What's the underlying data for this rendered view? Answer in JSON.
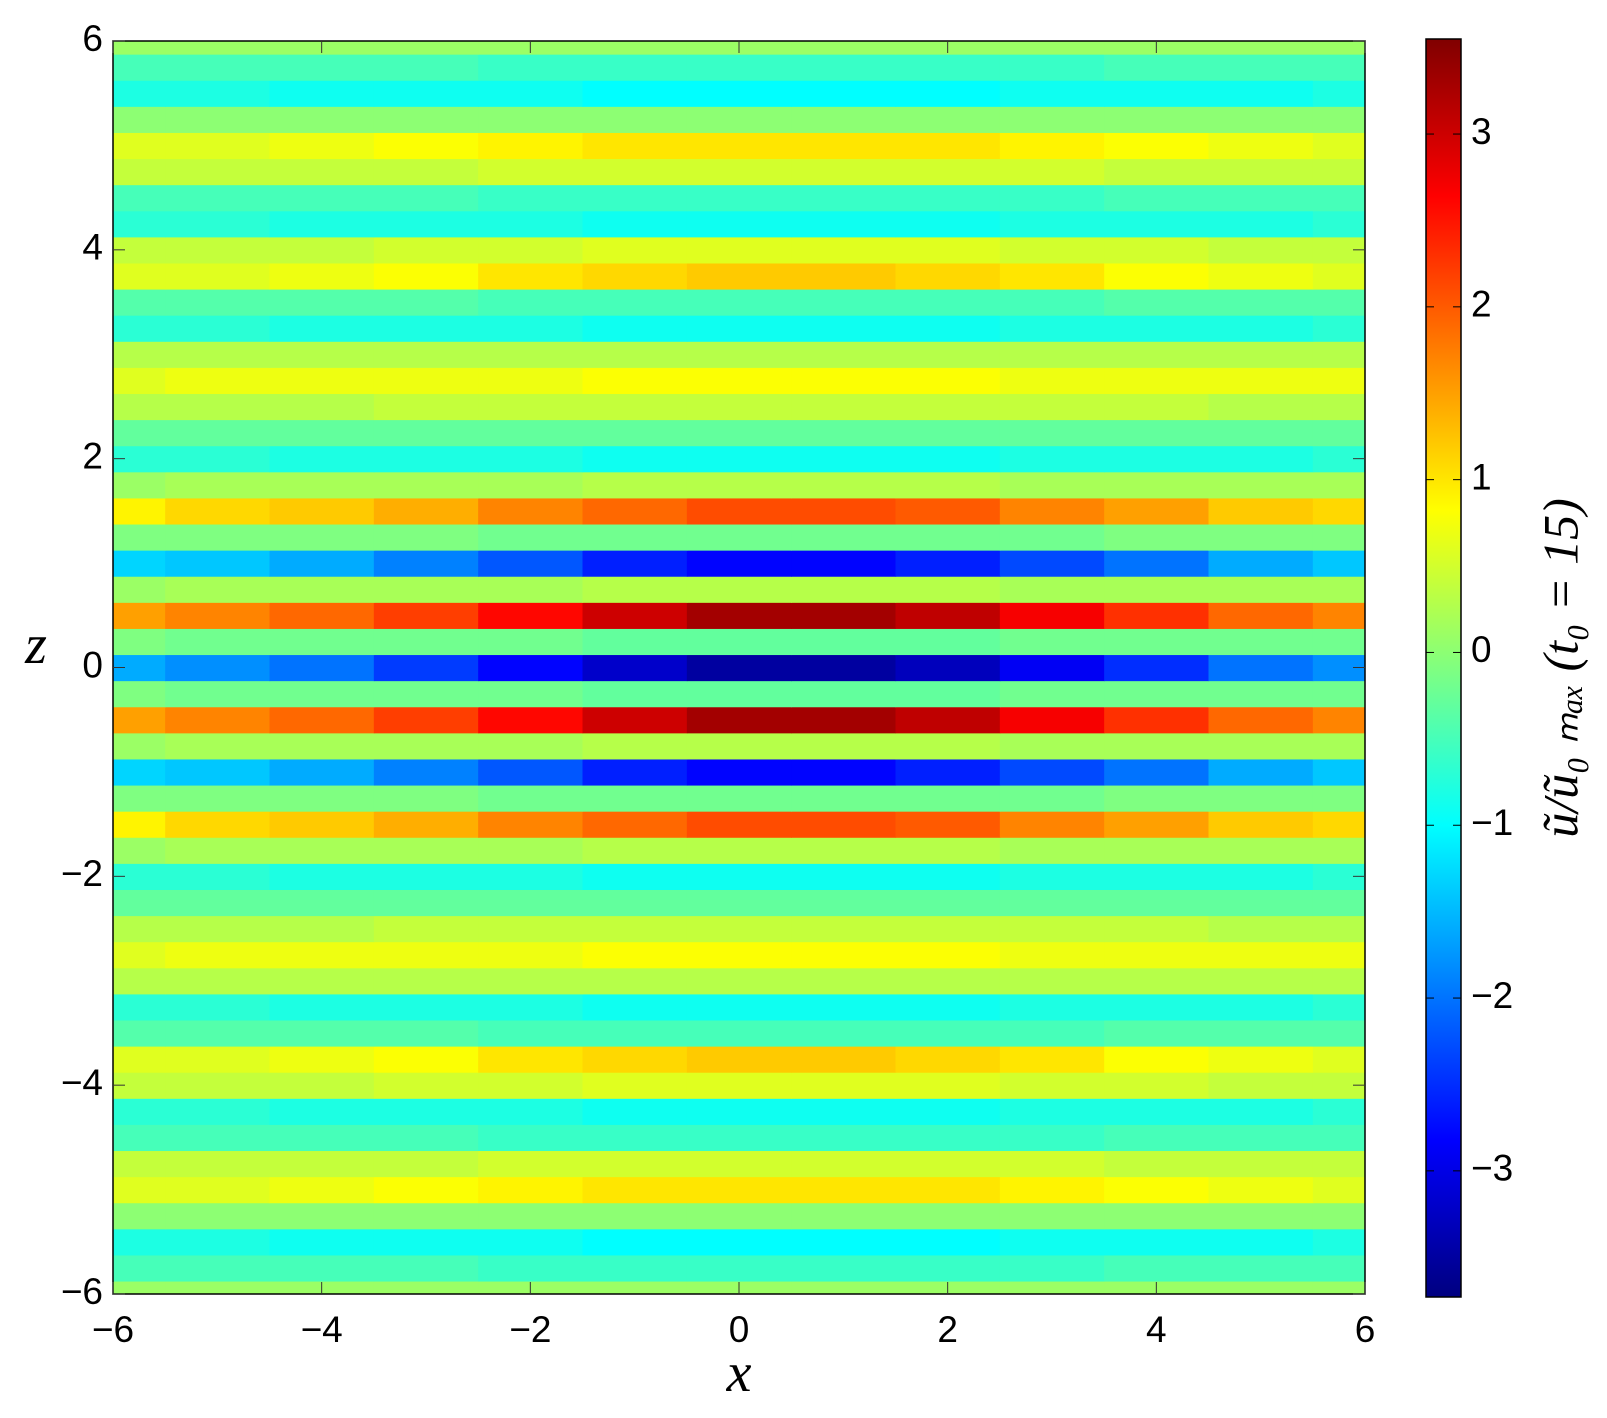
{
  "chart_data": {
    "type": "heatmap",
    "x_label": "x",
    "y_label": "z",
    "colorbar_label": "ũ/ũ₀ ₘₐₓ  (t₀ = 15)",
    "x": [
      -6,
      -5,
      -4,
      -3,
      -2,
      -1,
      0,
      1,
      2,
      3,
      4,
      5,
      6
    ],
    "z": [
      -6,
      -5.75,
      -5.5,
      -5.25,
      -5,
      -4.75,
      -4.5,
      -4.25,
      -4,
      -3.75,
      -3.5,
      -3.25,
      -3,
      -2.75,
      -2.5,
      -2.25,
      -2,
      -1.75,
      -1.5,
      -1.25,
      -1,
      -0.75,
      -0.5,
      -0.25,
      0,
      0.25,
      0.5,
      0.75,
      1,
      1.25,
      1.5,
      1.75,
      2,
      2.25,
      2.5,
      2.75,
      3,
      3.25,
      3.5,
      3.75,
      4,
      4.25,
      4.5,
      4.75,
      5,
      5.25,
      5.5,
      5.75,
      6
    ],
    "values": [
      [
        0.1,
        0.1,
        0.1,
        0.1,
        0.1,
        0.1,
        0.1,
        0.1,
        0.1,
        0.1,
        0.1,
        0.1,
        0.1
      ],
      [
        -0.5,
        -0.5,
        -0.5,
        -0.5,
        -0.6,
        -0.6,
        -0.6,
        -0.6,
        -0.6,
        -0.6,
        -0.5,
        -0.5,
        -0.5
      ],
      [
        -0.8,
        -0.8,
        -0.9,
        -0.9,
        -0.9,
        -1.0,
        -1.0,
        -1.0,
        -1.0,
        -0.9,
        -0.9,
        -0.9,
        -0.8
      ],
      [
        0,
        0,
        0,
        0,
        0,
        0,
        0,
        0,
        0,
        0,
        0,
        0,
        0
      ],
      [
        0.6,
        0.6,
        0.7,
        0.8,
        0.9,
        1.0,
        1.0,
        1.0,
        1.0,
        0.9,
        0.8,
        0.7,
        0.6
      ],
      [
        0.4,
        0.4,
        0.4,
        0.4,
        0.5,
        0.5,
        0.5,
        0.5,
        0.5,
        0.5,
        0.4,
        0.4,
        0.4
      ],
      [
        -0.5,
        -0.5,
        -0.5,
        -0.5,
        -0.6,
        -0.6,
        -0.6,
        -0.6,
        -0.6,
        -0.6,
        -0.5,
        -0.5,
        -0.5
      ],
      [
        -0.7,
        -0.7,
        -0.8,
        -0.8,
        -0.8,
        -0.9,
        -0.9,
        -0.9,
        -0.9,
        -0.8,
        -0.8,
        -0.8,
        -0.7
      ],
      [
        0.4,
        0.4,
        0.4,
        0.5,
        0.5,
        0.6,
        0.6,
        0.6,
        0.6,
        0.5,
        0.5,
        0.4,
        0.4
      ],
      [
        0.6,
        0.6,
        0.7,
        0.8,
        1.0,
        1.1,
        1.2,
        1.2,
        1.1,
        1.0,
        0.8,
        0.7,
        0.6
      ],
      [
        -0.4,
        -0.4,
        -0.4,
        -0.4,
        -0.5,
        -0.5,
        -0.5,
        -0.5,
        -0.5,
        -0.5,
        -0.4,
        -0.4,
        -0.4
      ],
      [
        -0.7,
        -0.7,
        -0.8,
        -0.8,
        -0.8,
        -0.9,
        -0.9,
        -0.9,
        -0.9,
        -0.8,
        -0.8,
        -0.8,
        -0.7
      ],
      [
        0.3,
        0.3,
        0.3,
        0.3,
        0.3,
        0.3,
        0.3,
        0.3,
        0.3,
        0.3,
        0.3,
        0.3,
        0.3
      ],
      [
        0.6,
        0.7,
        0.7,
        0.7,
        0.7,
        0.8,
        0.8,
        0.8,
        0.8,
        0.7,
        0.7,
        0.7,
        0.7
      ],
      [
        0.3,
        0.3,
        0.3,
        0.4,
        0.4,
        0.4,
        0.4,
        0.4,
        0.4,
        0.4,
        0.4,
        0.3,
        0.3
      ],
      [
        -0.3,
        -0.3,
        -0.3,
        -0.3,
        -0.3,
        -0.3,
        -0.3,
        -0.3,
        -0.3,
        -0.3,
        -0.3,
        -0.3,
        -0.3
      ],
      [
        -0.7,
        -0.7,
        -0.8,
        -0.8,
        -0.8,
        -0.9,
        -0.9,
        -0.9,
        -0.9,
        -0.8,
        -0.8,
        -0.8,
        -0.7
      ],
      [
        0.1,
        0.2,
        0.2,
        0.2,
        0.2,
        0.3,
        0.3,
        0.3,
        0.3,
        0.2,
        0.2,
        0.2,
        0.2
      ],
      [
        0.9,
        1.1,
        1.2,
        1.4,
        1.7,
        1.9,
        2.1,
        2.1,
        2.0,
        1.7,
        1.5,
        1.2,
        1.1
      ],
      [
        -0.1,
        -0.1,
        -0.1,
        -0.1,
        -0.2,
        -0.2,
        -0.2,
        -0.2,
        -0.2,
        -0.2,
        -0.1,
        -0.1,
        -0.1
      ],
      [
        -1.3,
        -1.4,
        -1.6,
        -1.9,
        -2.2,
        -2.6,
        -2.8,
        -2.8,
        -2.6,
        -2.3,
        -2.0,
        -1.6,
        -1.4
      ],
      [
        0.1,
        0.2,
        0.2,
        0.2,
        0.2,
        0.3,
        0.3,
        0.3,
        0.3,
        0.2,
        0.2,
        0.2,
        0.2
      ],
      [
        1.5,
        1.7,
        1.9,
        2.2,
        2.6,
        3.0,
        3.3,
        3.3,
        3.1,
        2.7,
        2.3,
        1.9,
        1.7
      ],
      [
        -0.1,
        -0.2,
        -0.2,
        -0.2,
        -0.2,
        -0.3,
        -0.3,
        -0.3,
        -0.3,
        -0.2,
        -0.2,
        -0.2,
        -0.2
      ],
      [
        -1.6,
        -1.8,
        -2.0,
        -2.4,
        -2.8,
        -3.2,
        -3.5,
        -3.5,
        -3.3,
        -2.9,
        -2.5,
        -2.0,
        -1.8
      ],
      [
        -0.1,
        -0.2,
        -0.2,
        -0.2,
        -0.2,
        -0.3,
        -0.3,
        -0.3,
        -0.3,
        -0.2,
        -0.2,
        -0.2,
        -0.2
      ],
      [
        1.5,
        1.7,
        1.9,
        2.2,
        2.6,
        3.0,
        3.3,
        3.3,
        3.1,
        2.7,
        2.3,
        1.9,
        1.7
      ],
      [
        0.1,
        0.2,
        0.2,
        0.2,
        0.2,
        0.3,
        0.3,
        0.3,
        0.3,
        0.2,
        0.2,
        0.2,
        0.2
      ],
      [
        -1.3,
        -1.4,
        -1.6,
        -1.9,
        -2.2,
        -2.6,
        -2.8,
        -2.8,
        -2.6,
        -2.3,
        -2.0,
        -1.6,
        -1.4
      ],
      [
        -0.1,
        -0.1,
        -0.1,
        -0.1,
        -0.2,
        -0.2,
        -0.2,
        -0.2,
        -0.2,
        -0.2,
        -0.1,
        -0.1,
        -0.1
      ],
      [
        0.9,
        1.1,
        1.2,
        1.4,
        1.7,
        1.9,
        2.1,
        2.1,
        2.0,
        1.7,
        1.5,
        1.2,
        1.1
      ],
      [
        0.1,
        0.2,
        0.2,
        0.2,
        0.2,
        0.3,
        0.3,
        0.3,
        0.3,
        0.2,
        0.2,
        0.2,
        0.2
      ],
      [
        -0.7,
        -0.7,
        -0.8,
        -0.8,
        -0.8,
        -0.9,
        -0.9,
        -0.9,
        -0.9,
        -0.8,
        -0.8,
        -0.8,
        -0.7
      ],
      [
        -0.3,
        -0.3,
        -0.3,
        -0.3,
        -0.3,
        -0.3,
        -0.3,
        -0.3,
        -0.3,
        -0.3,
        -0.3,
        -0.3,
        -0.3
      ],
      [
        0.3,
        0.3,
        0.3,
        0.4,
        0.4,
        0.4,
        0.4,
        0.4,
        0.4,
        0.4,
        0.4,
        0.3,
        0.3
      ],
      [
        0.6,
        0.7,
        0.7,
        0.7,
        0.7,
        0.8,
        0.8,
        0.8,
        0.8,
        0.7,
        0.7,
        0.7,
        0.7
      ],
      [
        0.3,
        0.3,
        0.3,
        0.3,
        0.3,
        0.3,
        0.3,
        0.3,
        0.3,
        0.3,
        0.3,
        0.3,
        0.3
      ],
      [
        -0.7,
        -0.7,
        -0.8,
        -0.8,
        -0.8,
        -0.9,
        -0.9,
        -0.9,
        -0.9,
        -0.8,
        -0.8,
        -0.8,
        -0.7
      ],
      [
        -0.4,
        -0.4,
        -0.4,
        -0.4,
        -0.5,
        -0.5,
        -0.5,
        -0.5,
        -0.5,
        -0.5,
        -0.4,
        -0.4,
        -0.4
      ],
      [
        0.6,
        0.6,
        0.7,
        0.8,
        1.0,
        1.1,
        1.2,
        1.2,
        1.1,
        1.0,
        0.8,
        0.7,
        0.6
      ],
      [
        0.4,
        0.4,
        0.4,
        0.5,
        0.5,
        0.6,
        0.6,
        0.6,
        0.6,
        0.5,
        0.5,
        0.4,
        0.4
      ],
      [
        -0.7,
        -0.7,
        -0.8,
        -0.8,
        -0.8,
        -0.9,
        -0.9,
        -0.9,
        -0.9,
        -0.8,
        -0.8,
        -0.8,
        -0.7
      ],
      [
        -0.5,
        -0.5,
        -0.5,
        -0.5,
        -0.6,
        -0.6,
        -0.6,
        -0.6,
        -0.6,
        -0.6,
        -0.5,
        -0.5,
        -0.5
      ],
      [
        0.4,
        0.4,
        0.4,
        0.4,
        0.5,
        0.5,
        0.5,
        0.5,
        0.5,
        0.5,
        0.4,
        0.4,
        0.4
      ],
      [
        0.6,
        0.6,
        0.7,
        0.8,
        0.9,
        1.0,
        1.0,
        1.0,
        1.0,
        0.9,
        0.8,
        0.7,
        0.6
      ],
      [
        0,
        0,
        0,
        0,
        0,
        0,
        0,
        0,
        0,
        0,
        0,
        0,
        0
      ],
      [
        -0.8,
        -0.8,
        -0.9,
        -0.9,
        -0.9,
        -1.0,
        -1.0,
        -1.0,
        -1.0,
        -0.9,
        -0.9,
        -0.9,
        -0.8
      ],
      [
        -0.5,
        -0.5,
        -0.5,
        -0.5,
        -0.6,
        -0.6,
        -0.6,
        -0.6,
        -0.6,
        -0.6,
        -0.5,
        -0.5,
        -0.5
      ],
      [
        0.1,
        0.1,
        0.1,
        0.1,
        0.1,
        0.1,
        0.1,
        0.1,
        0.1,
        0.1,
        0.1,
        0.1,
        0.1
      ]
    ],
    "xlim": [
      -6,
      6
    ],
    "ylim": [
      -6,
      6
    ],
    "xticks": [
      {
        "value": -6,
        "label": "−6"
      },
      {
        "value": -4,
        "label": "−4"
      },
      {
        "value": -2,
        "label": "−2"
      },
      0,
      2,
      4,
      6
    ],
    "yticks": [
      {
        "value": -6,
        "label": "−6"
      },
      {
        "value": -4,
        "label": "−4"
      },
      {
        "value": -2,
        "label": "−2"
      },
      0,
      2,
      4,
      6
    ],
    "clim": [
      -3.73,
      3.55
    ],
    "cticks": [
      {
        "value": -3,
        "label": "−3"
      },
      {
        "value": -2,
        "label": "−2"
      },
      {
        "value": -1,
        "label": "−1"
      },
      0,
      1,
      2,
      3
    ],
    "colors": [
      "#000080",
      "#0000ff",
      "#0080ff",
      "#00ffff",
      "#80ff80",
      "#ffff00",
      "#ff8000",
      "#ff0000",
      "#800000"
    ]
  }
}
